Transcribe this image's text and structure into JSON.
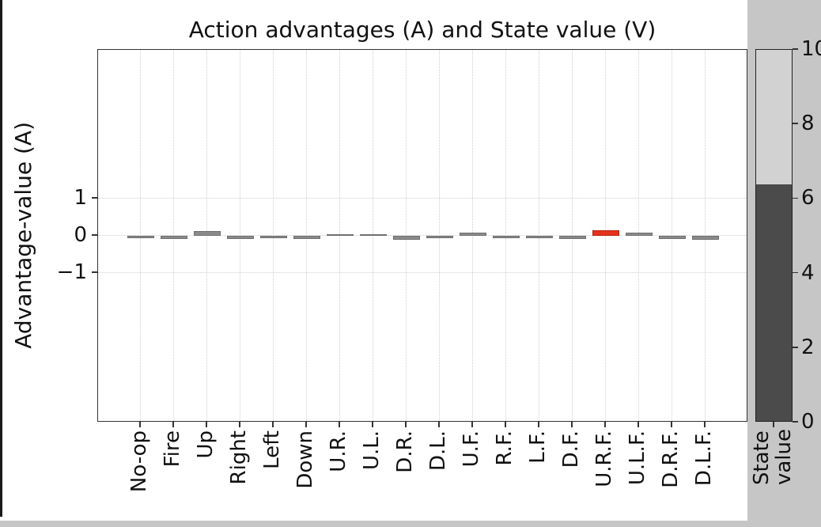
{
  "window": {
    "background": "#ffffff",
    "left_border_color": "#1a1a1a",
    "right_panel_color": "#c6c6c6",
    "bottom_strip_color": "#c6c6c6"
  },
  "chart_data": [
    {
      "type": "bar",
      "title": "Action advantages (A) and State value (V)",
      "xlabel": "",
      "ylabel": "Advantage-value (A)",
      "categories": [
        "No-op",
        "Fire",
        "Up",
        "Right",
        "Left",
        "Down",
        "U.R.",
        "U.L.",
        "D.R.",
        "D.L.",
        "U.F.",
        "R.F.",
        "L.F.",
        "D.F.",
        "U.R.F.",
        "U.L.F.",
        "D.R.F.",
        "D.L.F."
      ],
      "values": [
        -0.03,
        -0.08,
        0.12,
        -0.09,
        -0.06,
        -0.08,
        0.05,
        0.05,
        -0.11,
        -0.07,
        0.09,
        -0.05,
        -0.02,
        -0.09,
        0.15,
        0.08,
        -0.08,
        -0.1
      ],
      "highlight_index": 14,
      "highlight_category": "U.R.F.",
      "bar_color": "#8a8a8a",
      "bar_edge_color": "#6f6f6f",
      "highlight_color": "#e5321c",
      "highlight_edge_color": "#b5220f",
      "ytick_labels": [
        "1",
        "0",
        "−1"
      ],
      "ytick_values": [
        1,
        0,
        -1
      ],
      "ylim": [
        -5,
        5
      ],
      "grid": true,
      "grid_style": "dotted",
      "legend": "none"
    },
    {
      "type": "bar",
      "title": "",
      "xlabel": "State value",
      "xlabel_lines": [
        "State",
        "value"
      ],
      "categories": [
        "State value"
      ],
      "values": [
        6.4
      ],
      "ylim": [
        0,
        10
      ],
      "ytick_labels": [
        "0",
        "2",
        "4",
        "6",
        "8",
        "10"
      ],
      "ytick_values": [
        0,
        2,
        4,
        6,
        8,
        10
      ],
      "fill_color": "#4b4b4b",
      "track_color": "#d2d2d2"
    }
  ]
}
